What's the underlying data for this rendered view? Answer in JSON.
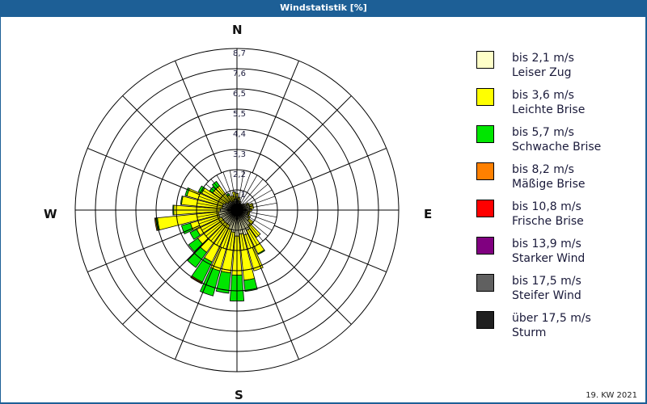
{
  "title": "Windstatistik [%]",
  "footer": "19. KW 2021",
  "compass": {
    "n": "N",
    "e": "E",
    "s": "S",
    "w": "W"
  },
  "legend": [
    {
      "line1": "bis 2,1 m/s",
      "line2": "Leiser Zug",
      "color": "#ffffc8"
    },
    {
      "line1": "bis 3,6 m/s",
      "line2": "Leichte Brise",
      "color": "#ffff00"
    },
    {
      "line1": "bis 5,7 m/s",
      "line2": "Schwache Brise",
      "color": "#00e600"
    },
    {
      "line1": "bis 8,2 m/s",
      "line2": "Mäßige Brise",
      "color": "#ff8000"
    },
    {
      "line1": "bis 10,8 m/s",
      "line2": "Frische Brise",
      "color": "#ff0000"
    },
    {
      "line1": "bis 13,9 m/s",
      "line2": "Starker Wind",
      "color": "#800080"
    },
    {
      "line1": "bis 17,5 m/s",
      "line2": "Steifer Wind",
      "color": "#606060"
    },
    {
      "line1": "über 17,5 m/s",
      "line2": "Sturm",
      "color": "#202020"
    }
  ],
  "chart_data": {
    "type": "windrose",
    "title": "Windstatistik [%]",
    "subtitle": "19. KW 2021",
    "radial_ticks": [
      "1,1",
      "2,2",
      "3,3",
      "4,4",
      "5,5",
      "6,5",
      "7,6",
      "8,7"
    ],
    "rmax": 8.7,
    "sector_width_deg": 10,
    "series_names": [
      "bis 2,1 m/s",
      "bis 3,6 m/s",
      "bis 5,7 m/s",
      "bis 8,2 m/s"
    ],
    "directions_deg": [
      0,
      10,
      20,
      30,
      40,
      50,
      60,
      70,
      80,
      90,
      100,
      110,
      120,
      130,
      140,
      150,
      160,
      170,
      180,
      190,
      200,
      210,
      220,
      230,
      240,
      250,
      260,
      270,
      280,
      290,
      300,
      310,
      320,
      330,
      340,
      350
    ],
    "series": [
      {
        "name": "bis 2,1 m/s",
        "values": [
          0.6,
          0.5,
          0.4,
          0.4,
          0.4,
          0.5,
          0.6,
          0.7,
          0.7,
          0.7,
          0.6,
          0.6,
          0.7,
          0.8,
          1.0,
          1.2,
          1.4,
          1.3,
          1.4,
          1.2,
          1.1,
          0.9,
          0.9,
          0.9,
          0.9,
          1.0,
          1.0,
          0.9,
          0.8,
          0.8,
          0.7,
          0.6,
          0.6,
          0.5,
          0.5,
          0.6
        ]
      },
      {
        "name": "bis 3,6 m/s",
        "values": [
          0.3,
          0.2,
          0.1,
          0.0,
          0.0,
          0.0,
          0.1,
          0.2,
          0.2,
          0.1,
          0.1,
          0.1,
          0.1,
          0.3,
          0.8,
          1.4,
          2.0,
          2.5,
          2.1,
          2.2,
          2.3,
          2.2,
          1.9,
          1.7,
          1.5,
          1.6,
          3.3,
          2.5,
          2.2,
          2.0,
          1.4,
          1.0,
          1.0,
          0.4,
          0.3,
          0.4
        ]
      },
      {
        "name": "bis 5,7 m/s",
        "values": [
          0.0,
          0.0,
          0.0,
          0.0,
          0.0,
          0.0,
          0.0,
          0.0,
          0.0,
          0.0,
          0.0,
          0.0,
          0.0,
          0.0,
          0.0,
          0.05,
          0.0,
          0.6,
          1.4,
          1.1,
          1.4,
          1.2,
          1.0,
          0.6,
          0.4,
          0.5,
          0.1,
          0.05,
          0.05,
          0.1,
          0.2,
          0.2,
          0.3,
          0.1,
          0.0,
          0.0
        ]
      },
      {
        "name": "bis 8,2 m/s",
        "values": [
          0,
          0,
          0,
          0,
          0,
          0,
          0,
          0,
          0,
          0,
          0,
          0,
          0,
          0,
          0,
          0,
          0,
          0,
          0,
          0,
          0,
          0.1,
          0,
          0,
          0,
          0,
          0.05,
          0,
          0,
          0,
          0,
          0,
          0,
          0,
          0,
          0
        ]
      }
    ],
    "legend_position": "right",
    "grid": true
  }
}
